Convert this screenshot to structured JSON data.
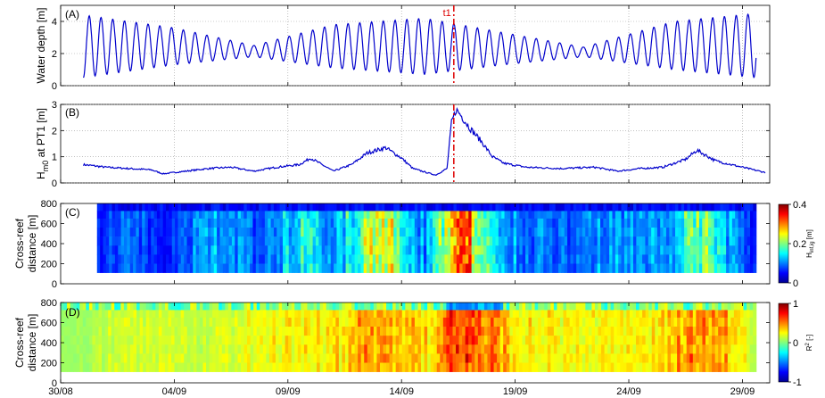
{
  "chart_data": [
    {
      "type": "line",
      "panel_label": "(A)",
      "ylabel": "Water depth [m]",
      "ylim": [
        0,
        5
      ],
      "yticks": [
        0,
        2,
        4
      ],
      "x_range": [
        "30/08",
        "30/09"
      ],
      "series": [
        {
          "name": "",
          "color": "#0000cc",
          "period_days": 0.5176,
          "envelope": [
            {
              "day": 1.0,
              "min": 0.5,
              "max": 4.4
            },
            {
              "day": 5.0,
              "min": 1.3,
              "max": 3.6
            },
            {
              "day": 8.5,
              "min": 1.8,
              "max": 2.5
            },
            {
              "day": 12.0,
              "min": 1.1,
              "max": 3.8
            },
            {
              "day": 16.0,
              "min": 0.7,
              "max": 4.2
            },
            {
              "day": 19.5,
              "min": 1.3,
              "max": 3.3
            },
            {
              "day": 23.0,
              "min": 1.8,
              "max": 2.4
            },
            {
              "day": 27.0,
              "min": 1.0,
              "max": 4.0
            },
            {
              "day": 30.6,
              "min": 0.5,
              "max": 4.5
            }
          ]
        }
      ],
      "event_line": {
        "label": "t1",
        "day": 17.3,
        "color": "#dd0000"
      }
    },
    {
      "type": "line",
      "panel_label": "(B)",
      "ylabel": "H",
      "ylabel_sub": "m0",
      "ylabel_rest": " at PT1 [m]",
      "ylim": [
        0,
        3
      ],
      "yticks": [
        0,
        1,
        2,
        3
      ],
      "series": [
        {
          "name": "",
          "color": "#0000cc",
          "points": [
            [
              1.0,
              0.7
            ],
            [
              2.0,
              0.6
            ],
            [
              3.0,
              0.55
            ],
            [
              4.0,
              0.5
            ],
            [
              4.5,
              0.35
            ],
            [
              5.5,
              0.45
            ],
            [
              6.5,
              0.55
            ],
            [
              7.5,
              0.6
            ],
            [
              8.5,
              0.45
            ],
            [
              9.5,
              0.6
            ],
            [
              10.5,
              0.7
            ],
            [
              11.0,
              0.95
            ],
            [
              12.0,
              0.45
            ],
            [
              12.8,
              0.7
            ],
            [
              13.5,
              1.15
            ],
            [
              14.3,
              1.35
            ],
            [
              15.0,
              0.95
            ],
            [
              15.5,
              0.55
            ],
            [
              16.5,
              0.3
            ],
            [
              17.0,
              0.55
            ],
            [
              17.2,
              2.3
            ],
            [
              17.4,
              2.8
            ],
            [
              17.6,
              2.6
            ],
            [
              18.0,
              2.1
            ],
            [
              18.5,
              1.6
            ],
            [
              19.0,
              1.0
            ],
            [
              19.5,
              0.75
            ],
            [
              20.5,
              0.6
            ],
            [
              22.0,
              0.55
            ],
            [
              23.5,
              0.6
            ],
            [
              24.5,
              0.45
            ],
            [
              25.5,
              0.55
            ],
            [
              26.5,
              0.6
            ],
            [
              27.5,
              0.9
            ],
            [
              28.0,
              1.25
            ],
            [
              28.8,
              0.85
            ],
            [
              29.5,
              0.7
            ],
            [
              30.5,
              0.5
            ],
            [
              31.0,
              0.4
            ]
          ]
        }
      ],
      "event_line": {
        "day": 17.3,
        "color": "#dd0000"
      }
    },
    {
      "type": "heatmap",
      "panel_label": "(C)",
      "ylabel": "Cross-reef distance [m]",
      "ylim": [
        0,
        800
      ],
      "yticks": [
        0,
        200,
        400,
        600,
        800
      ],
      "colorbar": {
        "label": "H",
        "label_sub": "inf,ig",
        "label_rest": " [m]",
        "min": 0,
        "max": 0.4,
        "ticks": [
          "0",
          "0.2",
          "0.4"
        ],
        "colormap": "jet"
      },
      "value_profile": [
        [
          1.0,
          0.05
        ],
        [
          3.0,
          0.1
        ],
        [
          4.5,
          0.06
        ],
        [
          6.0,
          0.1
        ],
        [
          7.5,
          0.12
        ],
        [
          8.5,
          0.08
        ],
        [
          10.0,
          0.14
        ],
        [
          11.0,
          0.16
        ],
        [
          12.0,
          0.1
        ],
        [
          13.5,
          0.22
        ],
        [
          14.2,
          0.26
        ],
        [
          15.0,
          0.18
        ],
        [
          16.0,
          0.1
        ],
        [
          17.0,
          0.22
        ],
        [
          17.4,
          0.34
        ],
        [
          18.0,
          0.28
        ],
        [
          19.0,
          0.14
        ],
        [
          20.5,
          0.1
        ],
        [
          22.0,
          0.09
        ],
        [
          24.0,
          0.11
        ],
        [
          25.5,
          0.1
        ],
        [
          27.0,
          0.12
        ],
        [
          28.0,
          0.22
        ],
        [
          29.0,
          0.14
        ],
        [
          30.5,
          0.06
        ]
      ]
    },
    {
      "type": "heatmap",
      "panel_label": "(D)",
      "ylabel": "Cross-reef distance [m]",
      "ylim": [
        0,
        800
      ],
      "yticks": [
        0,
        200,
        400,
        600,
        800
      ],
      "colorbar": {
        "label": "R",
        "label_sup": "2",
        "label_rest": " [-]",
        "min": -1,
        "max": 1,
        "ticks": [
          "-1",
          "0",
          "1"
        ],
        "colormap": "jet"
      },
      "value_profile": [
        [
          0.5,
          0.1
        ],
        [
          3.0,
          0.25
        ],
        [
          6.0,
          0.2
        ],
        [
          9.0,
          0.3
        ],
        [
          12.0,
          0.35
        ],
        [
          13.5,
          0.5
        ],
        [
          15.0,
          0.45
        ],
        [
          16.5,
          0.35
        ],
        [
          17.0,
          0.6
        ],
        [
          17.5,
          0.75
        ],
        [
          18.5,
          0.55
        ],
        [
          20.0,
          0.4
        ],
        [
          22.0,
          0.3
        ],
        [
          24.0,
          0.3
        ],
        [
          26.0,
          0.35
        ],
        [
          28.0,
          0.55
        ],
        [
          29.5,
          0.45
        ],
        [
          30.5,
          0.2
        ]
      ]
    }
  ],
  "x_axis": {
    "tick_labels": [
      "30/08",
      "04/09",
      "09/09",
      "14/09",
      "19/09",
      "24/09",
      "29/09"
    ],
    "tick_days": [
      0,
      5,
      10,
      15,
      20,
      25,
      30
    ],
    "range_days": [
      0,
      31.2
    ]
  }
}
